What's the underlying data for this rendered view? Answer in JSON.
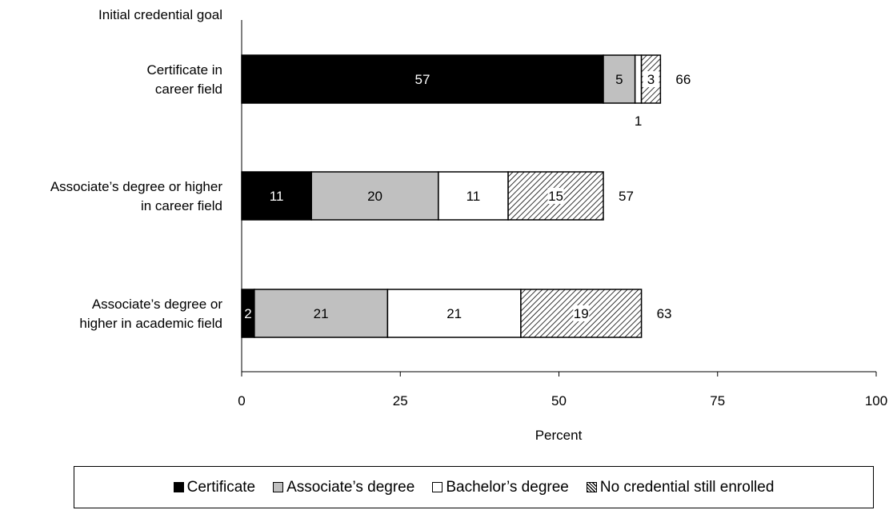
{
  "chart_data": {
    "type": "bar",
    "orientation": "horizontal",
    "stacked": true,
    "category_axis_title": "Initial credential goal",
    "categories": [
      [
        "Certificate in",
        "career field"
      ],
      [
        "Associate’s degree or higher",
        "in career field"
      ],
      [
        "Associate’s degree or",
        "higher in academic field"
      ]
    ],
    "series": [
      {
        "name": "Certificate",
        "values": [
          57,
          11,
          2
        ],
        "color": "#000000",
        "fill": "solid",
        "label_color": "#ffffff"
      },
      {
        "name": "Associate’s degree",
        "values": [
          5,
          20,
          21
        ],
        "color": "#c0c0c0",
        "fill": "solid",
        "label_color": "#000000"
      },
      {
        "name": "Bachelor’s degree",
        "values": [
          1,
          11,
          21
        ],
        "color": "#ffffff",
        "fill": "solid",
        "label_color": "#000000"
      },
      {
        "name": "No credential still enrolled",
        "values": [
          3,
          15,
          19
        ],
        "color": "#ffffff",
        "fill": "hatched",
        "label_color": "#000000"
      }
    ],
    "totals": [
      66,
      57,
      63
    ],
    "xlabel": "Percent",
    "xlim": [
      0,
      100
    ],
    "xticks": [
      0,
      25,
      50,
      75,
      100
    ],
    "grid": false,
    "legend_position": "bottom"
  }
}
